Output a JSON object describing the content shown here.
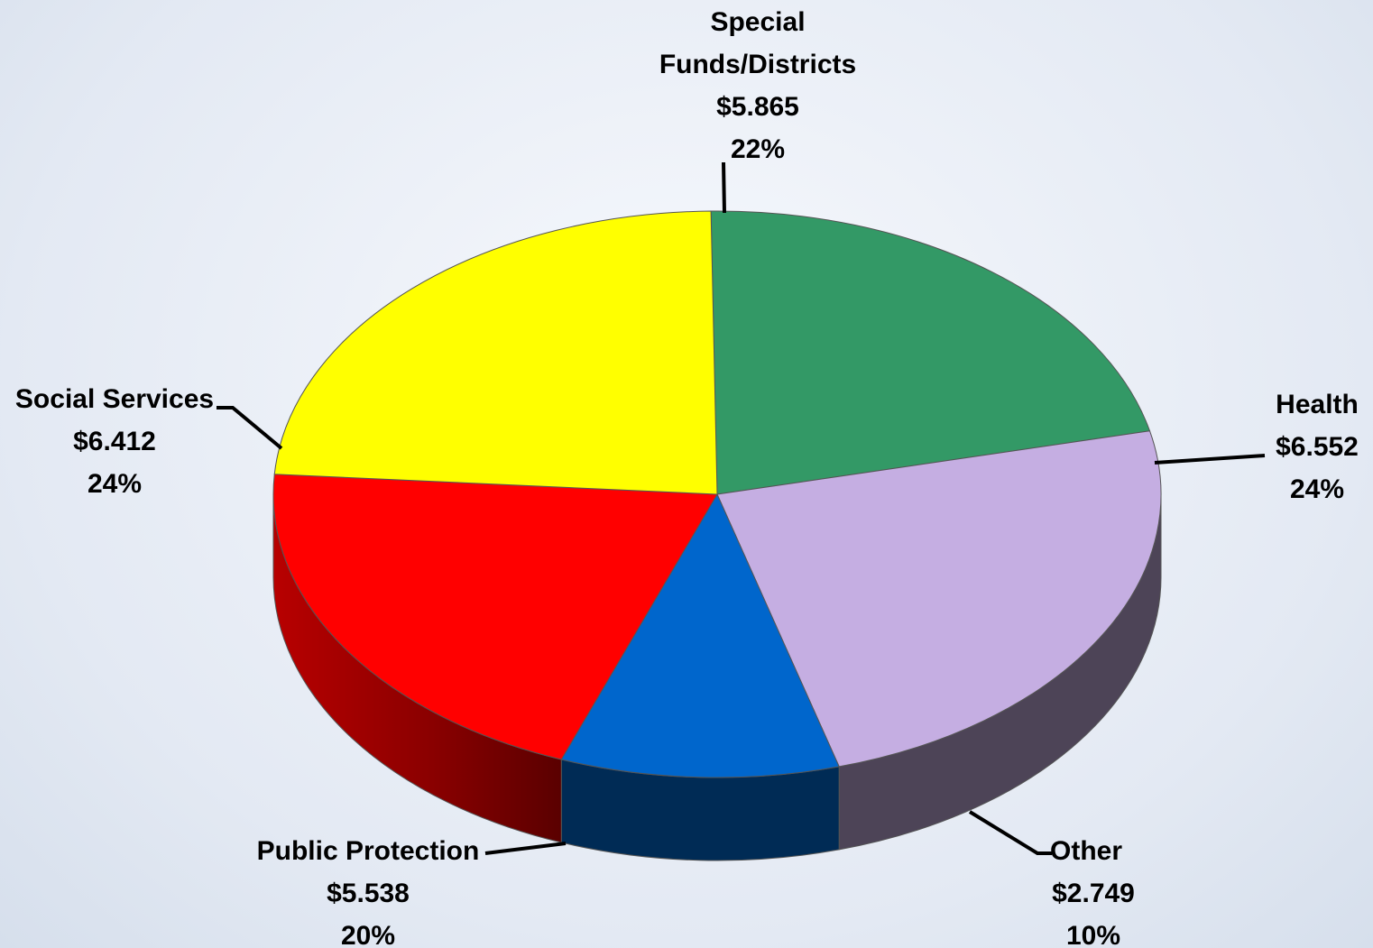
{
  "chart_data": {
    "type": "pie",
    "style": "3d",
    "title": "",
    "value_unit": "$",
    "slices": [
      {
        "name": "Special Funds/Districts",
        "name_lines": [
          "Special",
          "Funds/Districts"
        ],
        "value": 5.865,
        "value_label": "$5.865",
        "percent_label": "22%",
        "color": "#339966",
        "side_color": "#1f5e3e"
      },
      {
        "name": "Health",
        "name_lines": [
          "Health"
        ],
        "value": 6.552,
        "value_label": "$6.552",
        "percent_label": "24%",
        "color": "#c5aee2",
        "side_color": "#4d4457"
      },
      {
        "name": "Other",
        "name_lines": [
          "Other"
        ],
        "value": 2.749,
        "value_label": "$2.749",
        "percent_label": "10%",
        "color": "#0066cc",
        "side_color": "#002b55"
      },
      {
        "name": "Public Protection",
        "name_lines": [
          "Public Protection"
        ],
        "value": 5.538,
        "value_label": "$5.538",
        "percent_label": "20%",
        "color": "#ff0000",
        "side_color": "#9c0000"
      },
      {
        "name": "Social Services",
        "name_lines": [
          "Social Services"
        ],
        "value": 6.412,
        "value_label": "$6.412",
        "percent_label": "24%",
        "color": "#ffff00",
        "side_color": "#d6d600"
      }
    ]
  }
}
